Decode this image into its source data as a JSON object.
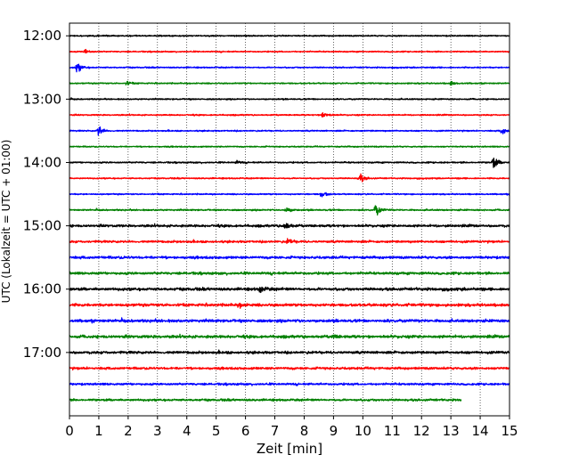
{
  "chart_data": {
    "type": "line",
    "title": "",
    "xlabel": "Zeit  [min]",
    "ylabel": "UTC (Lokalzeit = UTC + 01:00)",
    "xlim": [
      0,
      15
    ],
    "x_ticks": [
      0,
      1,
      2,
      3,
      4,
      5,
      6,
      7,
      8,
      9,
      10,
      11,
      12,
      13,
      14,
      15
    ],
    "x_tick_labels": [
      "0",
      "1",
      "2",
      "3",
      "4",
      "5",
      "6",
      "7",
      "8",
      "9",
      "10",
      "11",
      "12",
      "13",
      "14",
      "15"
    ],
    "y_ticks": [
      "12:00",
      "13:00",
      "14:00",
      "15:00",
      "16:00",
      "17:00"
    ],
    "y_range_hours": [
      11.8,
      18.0
    ],
    "grid": "vertical dotted at each minute",
    "trace_interval_min": 15,
    "color_cycle": [
      "#000000",
      "#ff0000",
      "#0000ff",
      "#008000"
    ],
    "traces": [
      {
        "start": "12:00",
        "end_min": 15,
        "amp": 0.6,
        "events": []
      },
      {
        "start": "12:15",
        "end_min": 15,
        "amp": 0.6,
        "events": [
          [
            0.55,
            2.4
          ]
        ]
      },
      {
        "start": "12:30",
        "end_min": 15,
        "amp": 0.6,
        "events": [
          [
            0.25,
            5.5
          ]
        ]
      },
      {
        "start": "12:45",
        "end_min": 15,
        "amp": 0.6,
        "events": [
          [
            1.95,
            2.0
          ],
          [
            13.0,
            2.0
          ]
        ]
      },
      {
        "start": "13:00",
        "end_min": 15,
        "amp": 0.6,
        "events": []
      },
      {
        "start": "13:15",
        "end_min": 15,
        "amp": 0.6,
        "events": [
          [
            8.65,
            4.5
          ]
        ]
      },
      {
        "start": "13:30",
        "end_min": 15,
        "amp": 0.6,
        "events": [
          [
            1.0,
            5.5
          ],
          [
            14.75,
            4.0
          ]
        ]
      },
      {
        "start": "13:45",
        "end_min": 15,
        "amp": 0.6,
        "events": []
      },
      {
        "start": "14:00",
        "end_min": 15,
        "amp": 0.7,
        "events": [
          [
            5.7,
            1.5
          ],
          [
            14.45,
            6.5
          ]
        ]
      },
      {
        "start": "14:15",
        "end_min": 15,
        "amp": 0.6,
        "events": [
          [
            9.9,
            5.0
          ]
        ]
      },
      {
        "start": "14:30",
        "end_min": 15,
        "amp": 0.6,
        "events": [
          [
            8.6,
            3.5
          ]
        ]
      },
      {
        "start": "14:45",
        "end_min": 15,
        "amp": 0.7,
        "events": [
          [
            7.4,
            3.0
          ],
          [
            10.45,
            6.0
          ]
        ]
      },
      {
        "start": "15:00",
        "end_min": 15,
        "amp": 1.1,
        "events": [
          [
            7.35,
            4.5
          ]
        ]
      },
      {
        "start": "15:15",
        "end_min": 15,
        "amp": 1.0,
        "events": [
          [
            7.45,
            3.0
          ]
        ]
      },
      {
        "start": "15:30",
        "end_min": 15,
        "amp": 1.2,
        "events": []
      },
      {
        "start": "15:45",
        "end_min": 15,
        "amp": 1.2,
        "events": []
      },
      {
        "start": "16:00",
        "end_min": 15,
        "amp": 1.3,
        "events": [
          [
            6.5,
            3.5
          ]
        ]
      },
      {
        "start": "16:15",
        "end_min": 15,
        "amp": 1.3,
        "events": [
          [
            5.8,
            2.0
          ]
        ]
      },
      {
        "start": "16:30",
        "end_min": 15,
        "amp": 1.3,
        "events": []
      },
      {
        "start": "16:45",
        "end_min": 15,
        "amp": 1.3,
        "events": [
          [
            9.0,
            1.6
          ]
        ]
      },
      {
        "start": "17:00",
        "end_min": 15,
        "amp": 1.2,
        "events": []
      },
      {
        "start": "17:15",
        "end_min": 15,
        "amp": 1.1,
        "events": []
      },
      {
        "start": "17:30",
        "end_min": 15,
        "amp": 1.0,
        "events": []
      },
      {
        "start": "17:45",
        "end_min": 13.35,
        "amp": 1.0,
        "events": []
      }
    ]
  }
}
